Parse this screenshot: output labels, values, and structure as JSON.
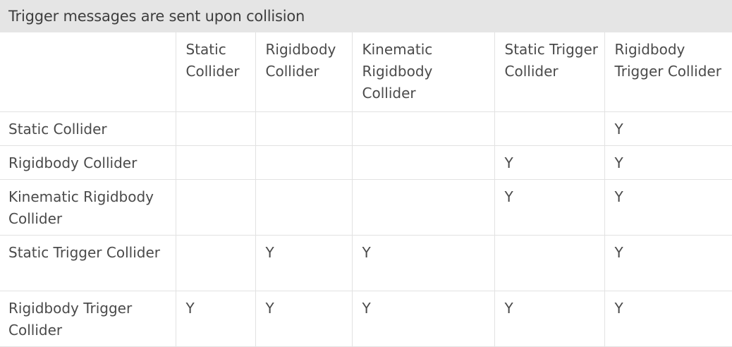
{
  "title": "Trigger messages are sent upon collision",
  "columns": [
    "",
    "Static Collider",
    "Rigidbody Collider",
    "Kinematic Rigidbody Collider",
    "Static Trigger Collider",
    "Rigidbody Trigger Collider"
  ],
  "rows": [
    {
      "label": "Static Collider",
      "cells": [
        "",
        "",
        "",
        "",
        "Y"
      ]
    },
    {
      "label": "Rigidbody Collider",
      "cells": [
        "",
        "",
        "",
        "Y",
        "Y"
      ]
    },
    {
      "label": "Kinematic Rigidbody Collider",
      "cells": [
        "",
        "",
        "",
        "Y",
        "Y"
      ]
    },
    {
      "label": "Static Trigger Collider",
      "cells": [
        "",
        "Y",
        "Y",
        "",
        "Y"
      ]
    },
    {
      "label": "Rigidbody Trigger Collider",
      "cells": [
        "Y",
        "Y",
        "Y",
        "Y",
        "Y"
      ]
    }
  ]
}
